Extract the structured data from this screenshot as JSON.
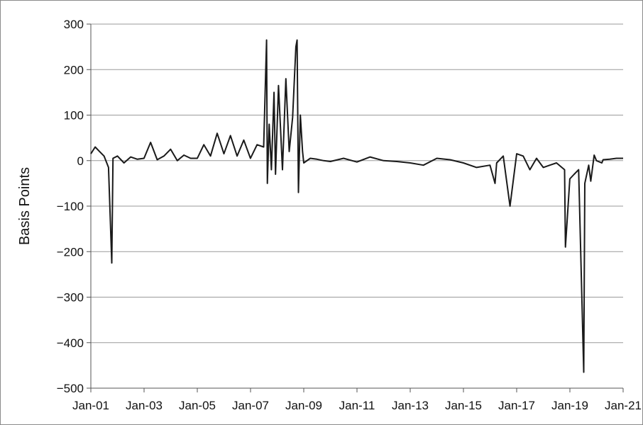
{
  "chart_data": {
    "type": "line",
    "title": "",
    "xlabel": "",
    "ylabel": "Basis Points",
    "ylim": [
      -500,
      300
    ],
    "xlim": [
      "2001-01-01",
      "2021-01-01"
    ],
    "yticks": [
      300,
      200,
      100,
      0,
      -100,
      -200,
      -300,
      -400,
      -500
    ],
    "ytick_labels": [
      "300",
      "200",
      "100",
      "0",
      "−100",
      "−200",
      "−300",
      "−400",
      "−500"
    ],
    "xtick_labels": [
      "Jan-01",
      "Jan-03",
      "Jan-05",
      "Jan-07",
      "Jan-09",
      "Jan-11",
      "Jan-13",
      "Jan-15",
      "Jan-17",
      "Jan-19",
      "Jan-21"
    ],
    "grid": "horizontal",
    "legend": "none",
    "color": "#1a1a1a",
    "series": [
      {
        "x": [
          "2001-01-01",
          "2001-03-01",
          "2001-05-01",
          "2001-07-01",
          "2001-09-01",
          "2001-10-15",
          "2001-11-01",
          "2002-01-01",
          "2002-04-01",
          "2002-07-01",
          "2002-10-01",
          "2003-01-01",
          "2003-04-01",
          "2003-07-01",
          "2003-10-01",
          "2004-01-01",
          "2004-04-01",
          "2004-07-01",
          "2004-10-01",
          "2005-01-01",
          "2005-04-01",
          "2005-07-01",
          "2005-10-01",
          "2006-01-01",
          "2006-04-01",
          "2006-07-01",
          "2006-10-01",
          "2007-01-01",
          "2007-04-01",
          "2007-07-01",
          "2007-08-10",
          "2007-08-20",
          "2007-09-15",
          "2007-10-15",
          "2007-11-20",
          "2007-12-10",
          "2008-01-20",
          "2008-03-15",
          "2008-05-01",
          "2008-06-15",
          "2008-08-01",
          "2008-09-15",
          "2008-10-01",
          "2008-10-20",
          "2008-11-15",
          "2008-12-15",
          "2009-01-01",
          "2009-04-01",
          "2009-07-01",
          "2009-10-01",
          "2010-01-01",
          "2010-07-01",
          "2011-01-01",
          "2011-07-01",
          "2012-01-01",
          "2012-07-01",
          "2013-01-01",
          "2013-07-01",
          "2014-01-01",
          "2014-07-01",
          "2015-01-01",
          "2015-07-01",
          "2016-01-01",
          "2016-03-10",
          "2016-04-01",
          "2016-07-01",
          "2016-10-01",
          "2017-01-01",
          "2017-04-01",
          "2017-07-01",
          "2017-10-01",
          "2018-01-01",
          "2018-04-01",
          "2018-07-01",
          "2018-10-20",
          "2018-11-01",
          "2019-01-01",
          "2019-03-01",
          "2019-05-01",
          "2019-07-10",
          "2019-07-25",
          "2019-09-17",
          "2019-10-15",
          "2019-12-01",
          "2020-01-01",
          "2020-03-15",
          "2020-04-01",
          "2020-07-01",
          "2020-10-01",
          "2021-01-01"
        ],
        "y": [
          15,
          30,
          20,
          10,
          -15,
          -225,
          5,
          10,
          -5,
          8,
          3,
          5,
          40,
          2,
          10,
          25,
          0,
          12,
          5,
          5,
          35,
          10,
          60,
          15,
          55,
          10,
          45,
          5,
          35,
          30,
          265,
          -50,
          80,
          -20,
          150,
          -30,
          165,
          -20,
          180,
          20,
          95,
          250,
          265,
          -70,
          100,
          20,
          -5,
          5,
          3,
          0,
          -2,
          5,
          -3,
          8,
          0,
          -2,
          -5,
          -10,
          5,
          2,
          -5,
          -15,
          -10,
          -50,
          -5,
          10,
          -100,
          15,
          10,
          -20,
          5,
          -15,
          -10,
          -5,
          -20,
          -190,
          -40,
          -30,
          -20,
          -465,
          -50,
          -10,
          -45,
          12,
          0,
          -5,
          2,
          3,
          5,
          5
        ]
      }
    ]
  }
}
